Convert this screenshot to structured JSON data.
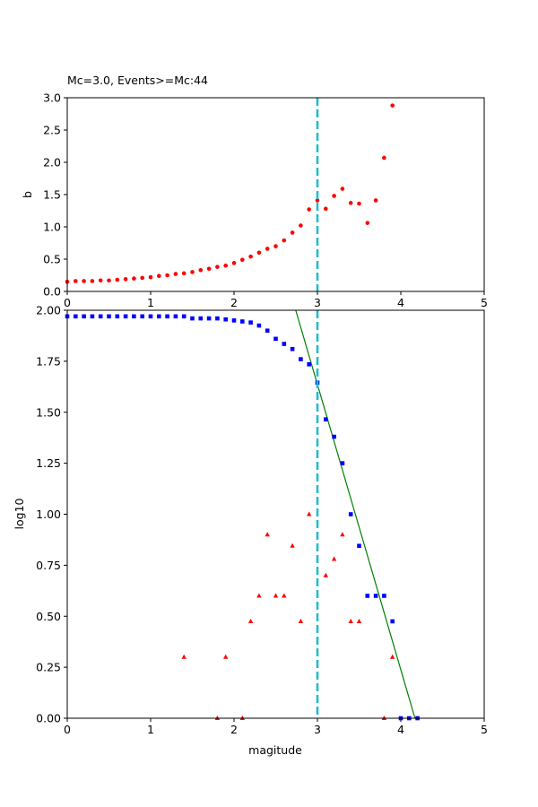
{
  "chart_data": [
    {
      "type": "scatter",
      "title": "Mc=3.0, Events>=Mc:44",
      "xlabel": "",
      "ylabel": "b",
      "xlim": [
        0,
        5
      ],
      "ylim": [
        0,
        3.0
      ],
      "xticks": [
        0,
        1,
        2,
        3,
        4,
        5
      ],
      "yticks": [
        0.0,
        0.5,
        1.0,
        1.5,
        2.0,
        2.5,
        3.0
      ],
      "ytick_labels": [
        "0.0",
        "0.5",
        "1.0",
        "1.5",
        "2.0",
        "2.5",
        "3.0"
      ],
      "vline": {
        "x": 3.0,
        "color": "#17becf",
        "style": "dashed"
      },
      "series": [
        {
          "marker": "circle",
          "color": "#ff0000",
          "x": [
            0.0,
            0.1,
            0.2,
            0.3,
            0.4,
            0.5,
            0.6,
            0.7,
            0.8,
            0.9,
            1.0,
            1.1,
            1.2,
            1.3,
            1.4,
            1.5,
            1.6,
            1.7,
            1.8,
            1.9,
            2.0,
            2.1,
            2.2,
            2.3,
            2.4,
            2.5,
            2.6,
            2.7,
            2.8,
            2.9,
            3.0,
            3.1,
            3.2,
            3.3,
            3.4,
            3.5,
            3.6,
            3.7,
            3.8,
            3.9
          ],
          "y": [
            0.15,
            0.16,
            0.16,
            0.16,
            0.17,
            0.17,
            0.18,
            0.19,
            0.2,
            0.21,
            0.22,
            0.24,
            0.25,
            0.27,
            0.28,
            0.3,
            0.33,
            0.35,
            0.38,
            0.4,
            0.44,
            0.49,
            0.54,
            0.6,
            0.66,
            0.7,
            0.79,
            0.91,
            1.02,
            1.27,
            1.41,
            1.28,
            1.48,
            1.59,
            1.37,
            1.36,
            1.06,
            1.41,
            2.07,
            2.88
          ]
        }
      ]
    },
    {
      "type": "scatter",
      "title": "",
      "xlabel": "magitude",
      "ylabel": "log10",
      "xlim": [
        0,
        5
      ],
      "ylim": [
        0,
        2.0
      ],
      "xticks": [
        0,
        1,
        2,
        3,
        4,
        5
      ],
      "yticks": [
        0.0,
        0.25,
        0.5,
        0.75,
        1.0,
        1.25,
        1.5,
        1.75,
        2.0
      ],
      "ytick_labels": [
        "0.00",
        "0.25",
        "0.50",
        "0.75",
        "1.00",
        "1.25",
        "1.50",
        "1.75",
        "2.00"
      ],
      "vline": {
        "x": 3.0,
        "color": "#17becf",
        "style": "dashed"
      },
      "fit_line": {
        "color": "#008000",
        "x": [
          2.74,
          4.17
        ],
        "y": [
          2.0,
          0.0
        ]
      },
      "series": [
        {
          "marker": "square",
          "color": "#0000ff",
          "x": [
            0.0,
            0.1,
            0.2,
            0.3,
            0.4,
            0.5,
            0.6,
            0.7,
            0.8,
            0.9,
            1.0,
            1.1,
            1.2,
            1.3,
            1.4,
            1.5,
            1.6,
            1.7,
            1.8,
            1.9,
            2.0,
            2.1,
            2.2,
            2.3,
            2.4,
            2.5,
            2.6,
            2.7,
            2.8,
            2.9,
            3.0,
            3.1,
            3.2,
            3.3,
            3.4,
            3.5,
            3.6,
            3.7,
            3.8,
            3.9,
            4.0,
            4.1,
            4.2
          ],
          "y": [
            1.97,
            1.97,
            1.97,
            1.97,
            1.97,
            1.97,
            1.97,
            1.97,
            1.97,
            1.97,
            1.97,
            1.97,
            1.97,
            1.97,
            1.97,
            1.96,
            1.96,
            1.96,
            1.96,
            1.955,
            1.95,
            1.945,
            1.94,
            1.925,
            1.9,
            1.86,
            1.835,
            1.81,
            1.76,
            1.735,
            1.645,
            1.465,
            1.38,
            1.25,
            1.0,
            0.845,
            0.6,
            0.6,
            0.6,
            0.475,
            0.0,
            0.0,
            0.0
          ]
        },
        {
          "marker": "triangle",
          "color": "#ff0000",
          "x": [
            1.4,
            1.8,
            1.9,
            2.1,
            2.2,
            2.3,
            2.4,
            2.5,
            2.6,
            2.7,
            2.8,
            2.9,
            3.1,
            3.2,
            3.3,
            3.4,
            3.5,
            3.8,
            3.9
          ],
          "y": [
            0.3,
            0.0,
            0.3,
            0.0,
            0.475,
            0.6,
            0.9,
            0.6,
            0.6,
            0.845,
            0.475,
            1.0,
            0.7,
            0.78,
            0.9,
            0.475,
            0.475,
            0.0,
            0.3
          ]
        }
      ]
    }
  ]
}
